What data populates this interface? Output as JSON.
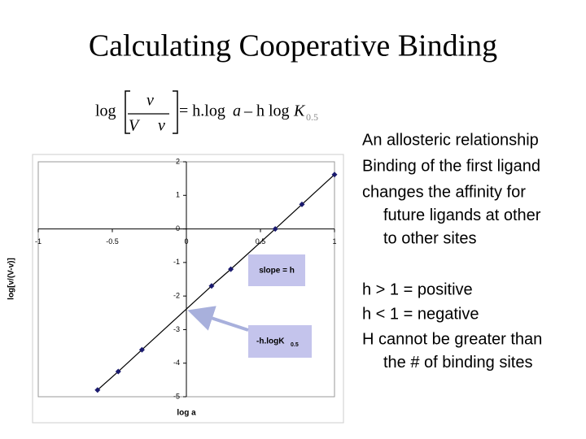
{
  "title": "Calculating Cooperative Binding",
  "equation": {
    "log": "log",
    "numerator": "v",
    "denominator_V": "V",
    "denominator_v": "v",
    "equals": "= h.log",
    "a": "a",
    "minus": "– h log",
    "K": "K",
    "subscript": "0.5"
  },
  "bullets": [
    [
      "An allosteric relationship"
    ],
    [
      "Binding of the first ligand"
    ],
    [
      "changes the affinity for",
      "future ligands at other",
      "to other sites"
    ],
    [
      "h > 1 = positive"
    ],
    [
      "h < 1 = negative"
    ],
    [
      "H cannot be greater than",
      "the # of binding sites"
    ]
  ],
  "chart_data": {
    "type": "line",
    "x_label": "log a",
    "y_label": "log[v/(V-v)]",
    "x": [
      -0.6,
      -0.46,
      -0.3,
      0.17,
      0.3,
      0.6,
      0.78,
      1.0
    ],
    "values": [
      -4.8,
      -4.25,
      -3.6,
      -1.7,
      -1.2,
      0.0,
      0.73,
      1.62
    ],
    "color": "#1a1a6e",
    "xlim": [
      -1,
      1
    ],
    "xticks": [
      -1,
      -0.5,
      0,
      0.5,
      1
    ],
    "ylim": [
      -5,
      2
    ],
    "yticks": [
      -5,
      -4,
      -3,
      -2,
      -1,
      0,
      1,
      2
    ],
    "annotations": {
      "slope": "slope = h",
      "intercept": "-h.logK",
      "intercept_sub": "0.5"
    }
  }
}
